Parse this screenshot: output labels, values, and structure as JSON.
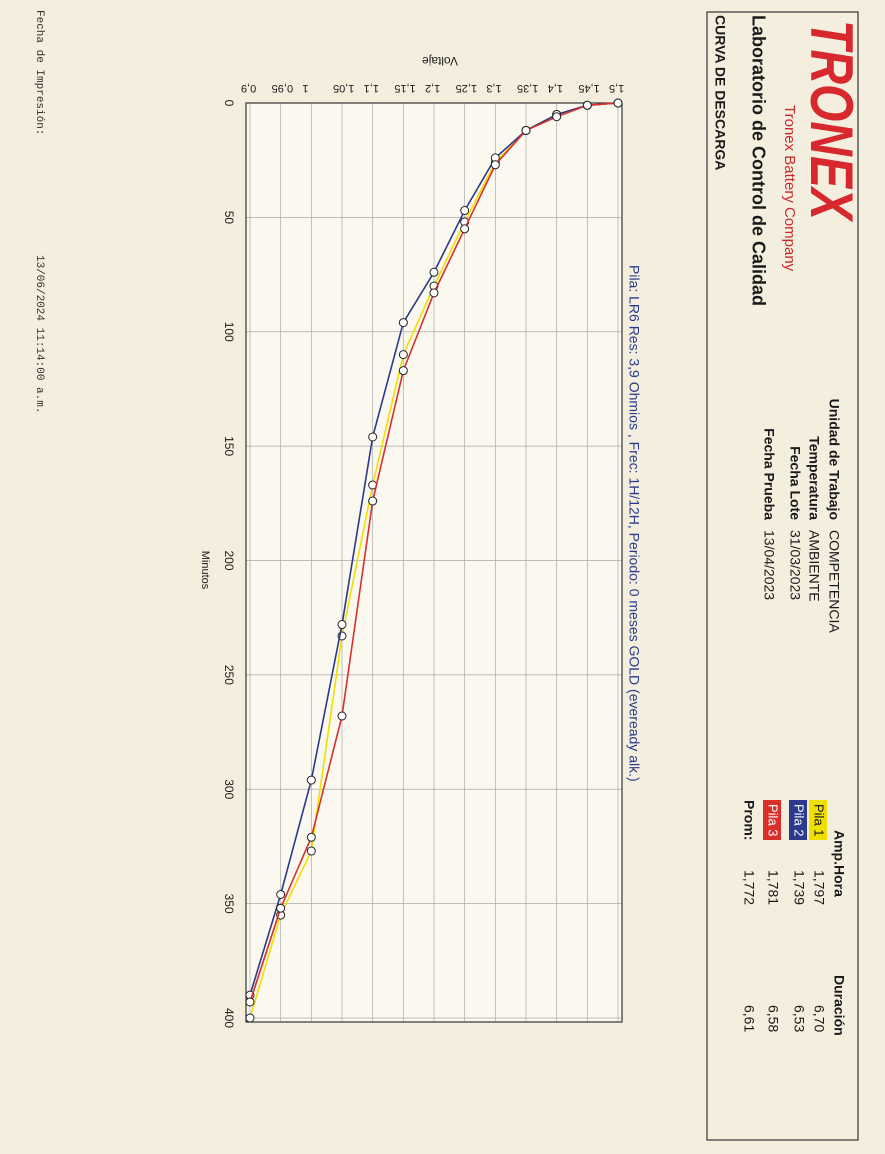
{
  "header": {
    "logo": "TRONEX",
    "company": "Tronex Battery Company",
    "lab": "Laboratorio de Control de Calidad",
    "doc_title": "CURVA DE DESCARGA",
    "info": [
      {
        "label": "Unidad de Trabajo",
        "value": "COMPETENCIA"
      },
      {
        "label": "Temperatura",
        "value": "AMBIENTE"
      },
      {
        "label": "Fecha Lote",
        "value": "31/03/2023"
      },
      {
        "label": "Fecha Prueba",
        "value": "13/04/2023"
      }
    ]
  },
  "summary": {
    "headers": [
      "Amp.Hora",
      "Duración"
    ],
    "rows": [
      {
        "amp": "1,797",
        "dur": "6,70"
      },
      {
        "amp": "1,739",
        "dur": "6,53"
      },
      {
        "amp": "1,781",
        "dur": "6,58"
      },
      {
        "label": "Prom:",
        "amp": "1,772",
        "dur": "6,61"
      }
    ]
  },
  "footer": {
    "label": "Fecha de Impresión:",
    "value": "13/06/2024 11:14:00 a.m."
  },
  "chart_data": {
    "type": "line",
    "subtitle": "Pila: LR6 Res: 3,9 Ohmios , Frec: 1H/12H, Periodo: 0 meses GOLD (eveready alk.)",
    "x_label": "Minutos",
    "y_label": "Voltaje",
    "grid": true,
    "xlim": [
      0,
      400
    ],
    "xticks": [
      0,
      50,
      100,
      150,
      200,
      250,
      300,
      350,
      400
    ],
    "ylim": [
      0.9,
      1.5
    ],
    "yticks": [
      {
        "value": 0.9,
        "label": "0,9"
      },
      {
        "value": 0.95,
        "label": "0,95"
      },
      1,
      {
        "value": 1.05,
        "label": "1,05"
      },
      {
        "value": 1.1,
        "label": "1,1"
      },
      {
        "value": 1.15,
        "label": "1,15"
      },
      {
        "value": 1.2,
        "label": "1,2"
      },
      {
        "value": 1.25,
        "label": "1,25"
      },
      {
        "value": 1.3,
        "label": "1,3"
      },
      {
        "value": 1.35,
        "label": "1,35"
      },
      {
        "value": 1.4,
        "label": "1,4"
      },
      {
        "value": 1.45,
        "label": "1,45"
      },
      {
        "value": 1.5,
        "label": "1,5"
      }
    ],
    "series": [
      {
        "name": "Pila 1",
        "color": "#f0e000",
        "x": [
          0,
          1,
          5,
          12,
          26,
          52,
          80,
          110,
          167,
          233,
          327,
          355,
          400
        ],
        "values": [
          1.5,
          1.45,
          1.4,
          1.35,
          1.3,
          1.25,
          1.2,
          1.15,
          1.1,
          1.05,
          1.0,
          0.95,
          0.9
        ]
      },
      {
        "name": "Pila 2",
        "color": "#2b3a8c",
        "x": [
          0,
          1,
          5,
          12,
          24,
          47,
          74,
          96,
          146,
          228,
          296,
          346,
          390
        ],
        "values": [
          1.5,
          1.45,
          1.4,
          1.35,
          1.3,
          1.25,
          1.2,
          1.15,
          1.1,
          1.05,
          1.0,
          0.95,
          0.9
        ]
      },
      {
        "name": "Pila 3",
        "color": "#d9302c",
        "x": [
          0,
          1,
          6,
          12,
          27,
          55,
          83,
          117,
          174,
          268,
          321,
          352,
          393
        ],
        "values": [
          1.5,
          1.45,
          1.4,
          1.35,
          1.3,
          1.25,
          1.2,
          1.15,
          1.1,
          1.05,
          1.0,
          0.95,
          0.9
        ]
      }
    ]
  }
}
